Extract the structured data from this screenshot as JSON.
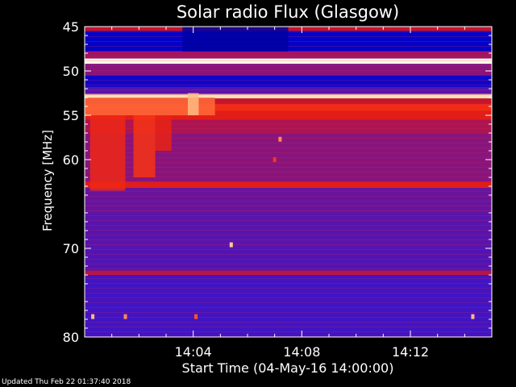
{
  "chart_data": {
    "type": "heatmap",
    "title": "Solar radio Flux (Glasgow)",
    "xlabel": "Start Time (04-May-16 14:00:00)",
    "ylabel": "Frequency [MHz]",
    "x_unit": "minutes after 14:00",
    "xlim": [
      0,
      15
    ],
    "ylim": [
      45,
      80
    ],
    "y_reversed": true,
    "x_ticks": [
      {
        "value": 4,
        "label": "14:04"
      },
      {
        "value": 8,
        "label": "14:08"
      },
      {
        "value": 12,
        "label": "14:12"
      }
    ],
    "y_ticks": [
      {
        "value": 45,
        "label": "45"
      },
      {
        "value": 50,
        "label": "50"
      },
      {
        "value": 55,
        "label": "55"
      },
      {
        "value": 60,
        "label": "60"
      },
      {
        "value": 70,
        "label": "70"
      },
      {
        "value": 80,
        "label": "80"
      }
    ],
    "colormap": [
      "#000040",
      "#0000c8",
      "#3c14c8",
      "#6414a0",
      "#a01464",
      "#c81428",
      "#e61e14",
      "#ff3c14",
      "#ffb478",
      "#ffffe6"
    ],
    "background_color": "#3c1aa8",
    "intensity_bands": [
      {
        "f0": 45.0,
        "f1": 45.5,
        "level": 0.55
      },
      {
        "f0": 45.5,
        "f1": 47.8,
        "level": 0.12
      },
      {
        "f0": 47.8,
        "f1": 48.6,
        "level": 0.45
      },
      {
        "f0": 48.6,
        "f1": 49.2,
        "level": 1.0
      },
      {
        "f0": 49.2,
        "f1": 50.5,
        "level": 0.4
      },
      {
        "f0": 50.5,
        "f1": 51.8,
        "level": 0.14
      },
      {
        "f0": 51.8,
        "f1": 52.6,
        "level": 0.3
      },
      {
        "f0": 52.6,
        "f1": 53.1,
        "level": 0.95
      },
      {
        "f0": 53.1,
        "f1": 53.7,
        "level": 0.55
      },
      {
        "f0": 53.7,
        "f1": 54.5,
        "level": 0.72
      },
      {
        "f0": 54.5,
        "f1": 55.5,
        "level": 0.66
      },
      {
        "f0": 55.5,
        "f1": 57.0,
        "level": 0.48
      },
      {
        "f0": 57.0,
        "f1": 62.5,
        "level": 0.4
      },
      {
        "f0": 62.5,
        "f1": 63.2,
        "level": 0.65
      },
      {
        "f0": 63.2,
        "f1": 66.0,
        "level": 0.34
      },
      {
        "f0": 66.0,
        "f1": 70.0,
        "level": 0.3
      },
      {
        "f0": 70.0,
        "f1": 72.5,
        "level": 0.28
      },
      {
        "f0": 72.5,
        "f1": 73.0,
        "level": 0.5
      },
      {
        "f0": 73.0,
        "f1": 80.0,
        "level": 0.24
      }
    ],
    "hot_regions": [
      {
        "t0": 0.0,
        "t1": 4.8,
        "f0": 53.0,
        "f1": 55.0,
        "level": 0.82
      },
      {
        "t0": 0.2,
        "t1": 1.5,
        "f0": 55.0,
        "f1": 63.5,
        "level": 0.7
      },
      {
        "t0": 1.8,
        "t1": 2.6,
        "f0": 55.0,
        "f1": 62.0,
        "level": 0.74
      },
      {
        "t0": 2.6,
        "t1": 3.2,
        "f0": 55.0,
        "f1": 59.0,
        "level": 0.68
      },
      {
        "t0": 3.8,
        "t1": 4.2,
        "f0": 52.5,
        "f1": 55.0,
        "level": 0.9
      },
      {
        "t0": 3.6,
        "t1": 7.5,
        "f0": 45.0,
        "f1": 47.8,
        "level": 0.08
      }
    ],
    "spots": [
      {
        "t": 7.2,
        "f": 57.7,
        "level": 0.85
      },
      {
        "t": 7.0,
        "f": 60.0,
        "level": 0.75
      },
      {
        "t": 5.4,
        "f": 69.6,
        "level": 0.92
      },
      {
        "t": 0.3,
        "f": 77.7,
        "level": 0.9
      },
      {
        "t": 1.5,
        "f": 77.7,
        "level": 0.85
      },
      {
        "t": 4.1,
        "f": 77.7,
        "level": 0.8
      },
      {
        "t": 14.3,
        "f": 77.7,
        "level": 0.9
      }
    ]
  },
  "footer": {
    "updated": "Updated Thu Feb 22 01:37:40 2018"
  }
}
